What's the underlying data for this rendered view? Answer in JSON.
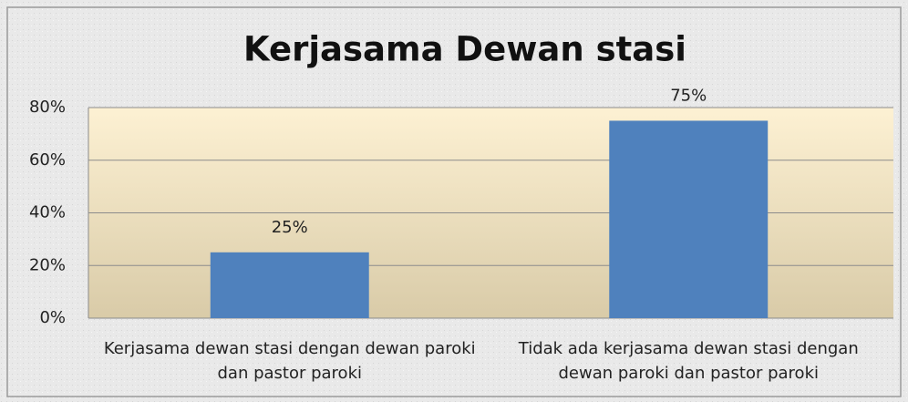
{
  "chart_data": {
    "type": "bar",
    "title": "Kerjasama Dewan stasi",
    "categories": [
      "Kerjasama dewan stasi dengan dewan paroki dan pastor paroki",
      "Tidak ada kerjasama dewan stasi dengan dewan paroki dan pastor paroki"
    ],
    "values": [
      25,
      75
    ],
    "value_labels": [
      "25%",
      "75%"
    ],
    "color": "#4f81bd",
    "ylim": [
      0,
      80
    ],
    "yticks": [
      {
        "value": 0,
        "label": "0%"
      },
      {
        "value": 20,
        "label": "20%"
      },
      {
        "value": 40,
        "label": "40%"
      },
      {
        "value": 60,
        "label": "60%"
      },
      {
        "value": 80,
        "label": "80%"
      }
    ],
    "grid": true
  }
}
